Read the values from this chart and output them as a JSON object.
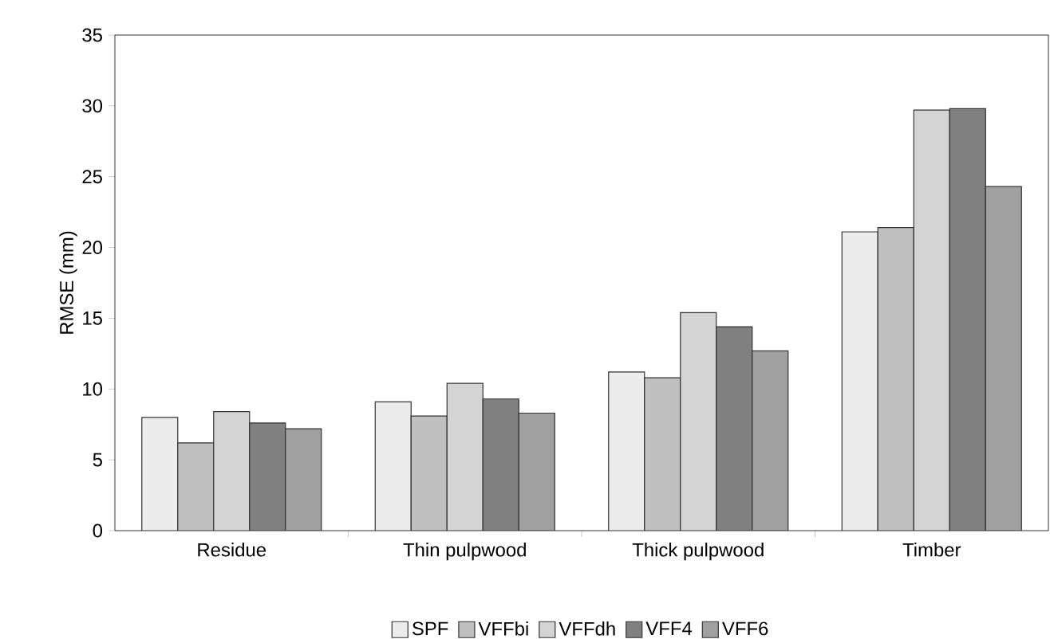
{
  "chart_data": {
    "type": "bar",
    "ylabel": "RMSE (mm)",
    "categories": [
      "Residue",
      "Thin pulpwood",
      "Thick pulpwood",
      "Timber"
    ],
    "series": [
      {
        "name": "SPF",
        "color": "#ececec",
        "values": [
          8.0,
          9.1,
          11.2,
          21.1
        ]
      },
      {
        "name": "VFFbi",
        "color": "#c0c0c0",
        "values": [
          6.2,
          8.1,
          10.8,
          21.4
        ]
      },
      {
        "name": "VFFdh",
        "color": "#d4d4d4",
        "values": [
          8.4,
          10.4,
          15.4,
          29.7
        ]
      },
      {
        "name": "VFF4",
        "color": "#808080",
        "values": [
          7.6,
          9.3,
          14.4,
          29.8
        ]
      },
      {
        "name": "VFF6",
        "color": "#a0a0a0",
        "values": [
          7.2,
          8.3,
          12.7,
          24.3
        ]
      }
    ],
    "ylim": [
      0,
      35
    ],
    "yticks": [
      0,
      5,
      10,
      15,
      20,
      25,
      30,
      35
    ],
    "grid": false,
    "legend": "bottom"
  }
}
